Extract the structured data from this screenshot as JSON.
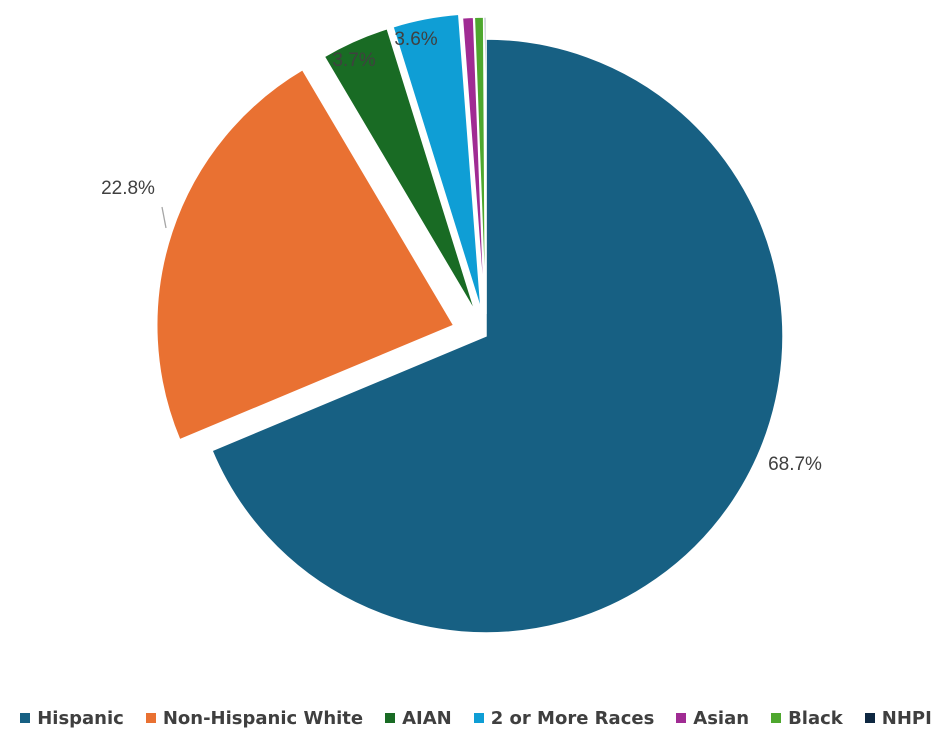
{
  "chart_data": {
    "type": "pie",
    "title": "",
    "slices": [
      {
        "label": "Hispanic",
        "value": 68.7,
        "data_label": "68.7%",
        "color": "#176083"
      },
      {
        "label": "Non-Hispanic White",
        "value": 22.8,
        "data_label": "22.8%",
        "color": "#e97132"
      },
      {
        "label": "AIAN",
        "value": 3.7,
        "data_label": "3.7%",
        "color": "#196b24"
      },
      {
        "label": "2 or More Races",
        "value": 3.6,
        "data_label": "3.6%",
        "color": "#0f9ed5"
      },
      {
        "label": "Asian",
        "value": 0.6,
        "data_label": "",
        "color": "#a02b93"
      },
      {
        "label": "Black",
        "value": 0.5,
        "data_label": "",
        "color": "#4ea72e"
      },
      {
        "label": "NHPI",
        "value": 0.1,
        "data_label": "",
        "color": "#0e2841"
      }
    ],
    "legend_position": "bottom",
    "exploded": true
  }
}
